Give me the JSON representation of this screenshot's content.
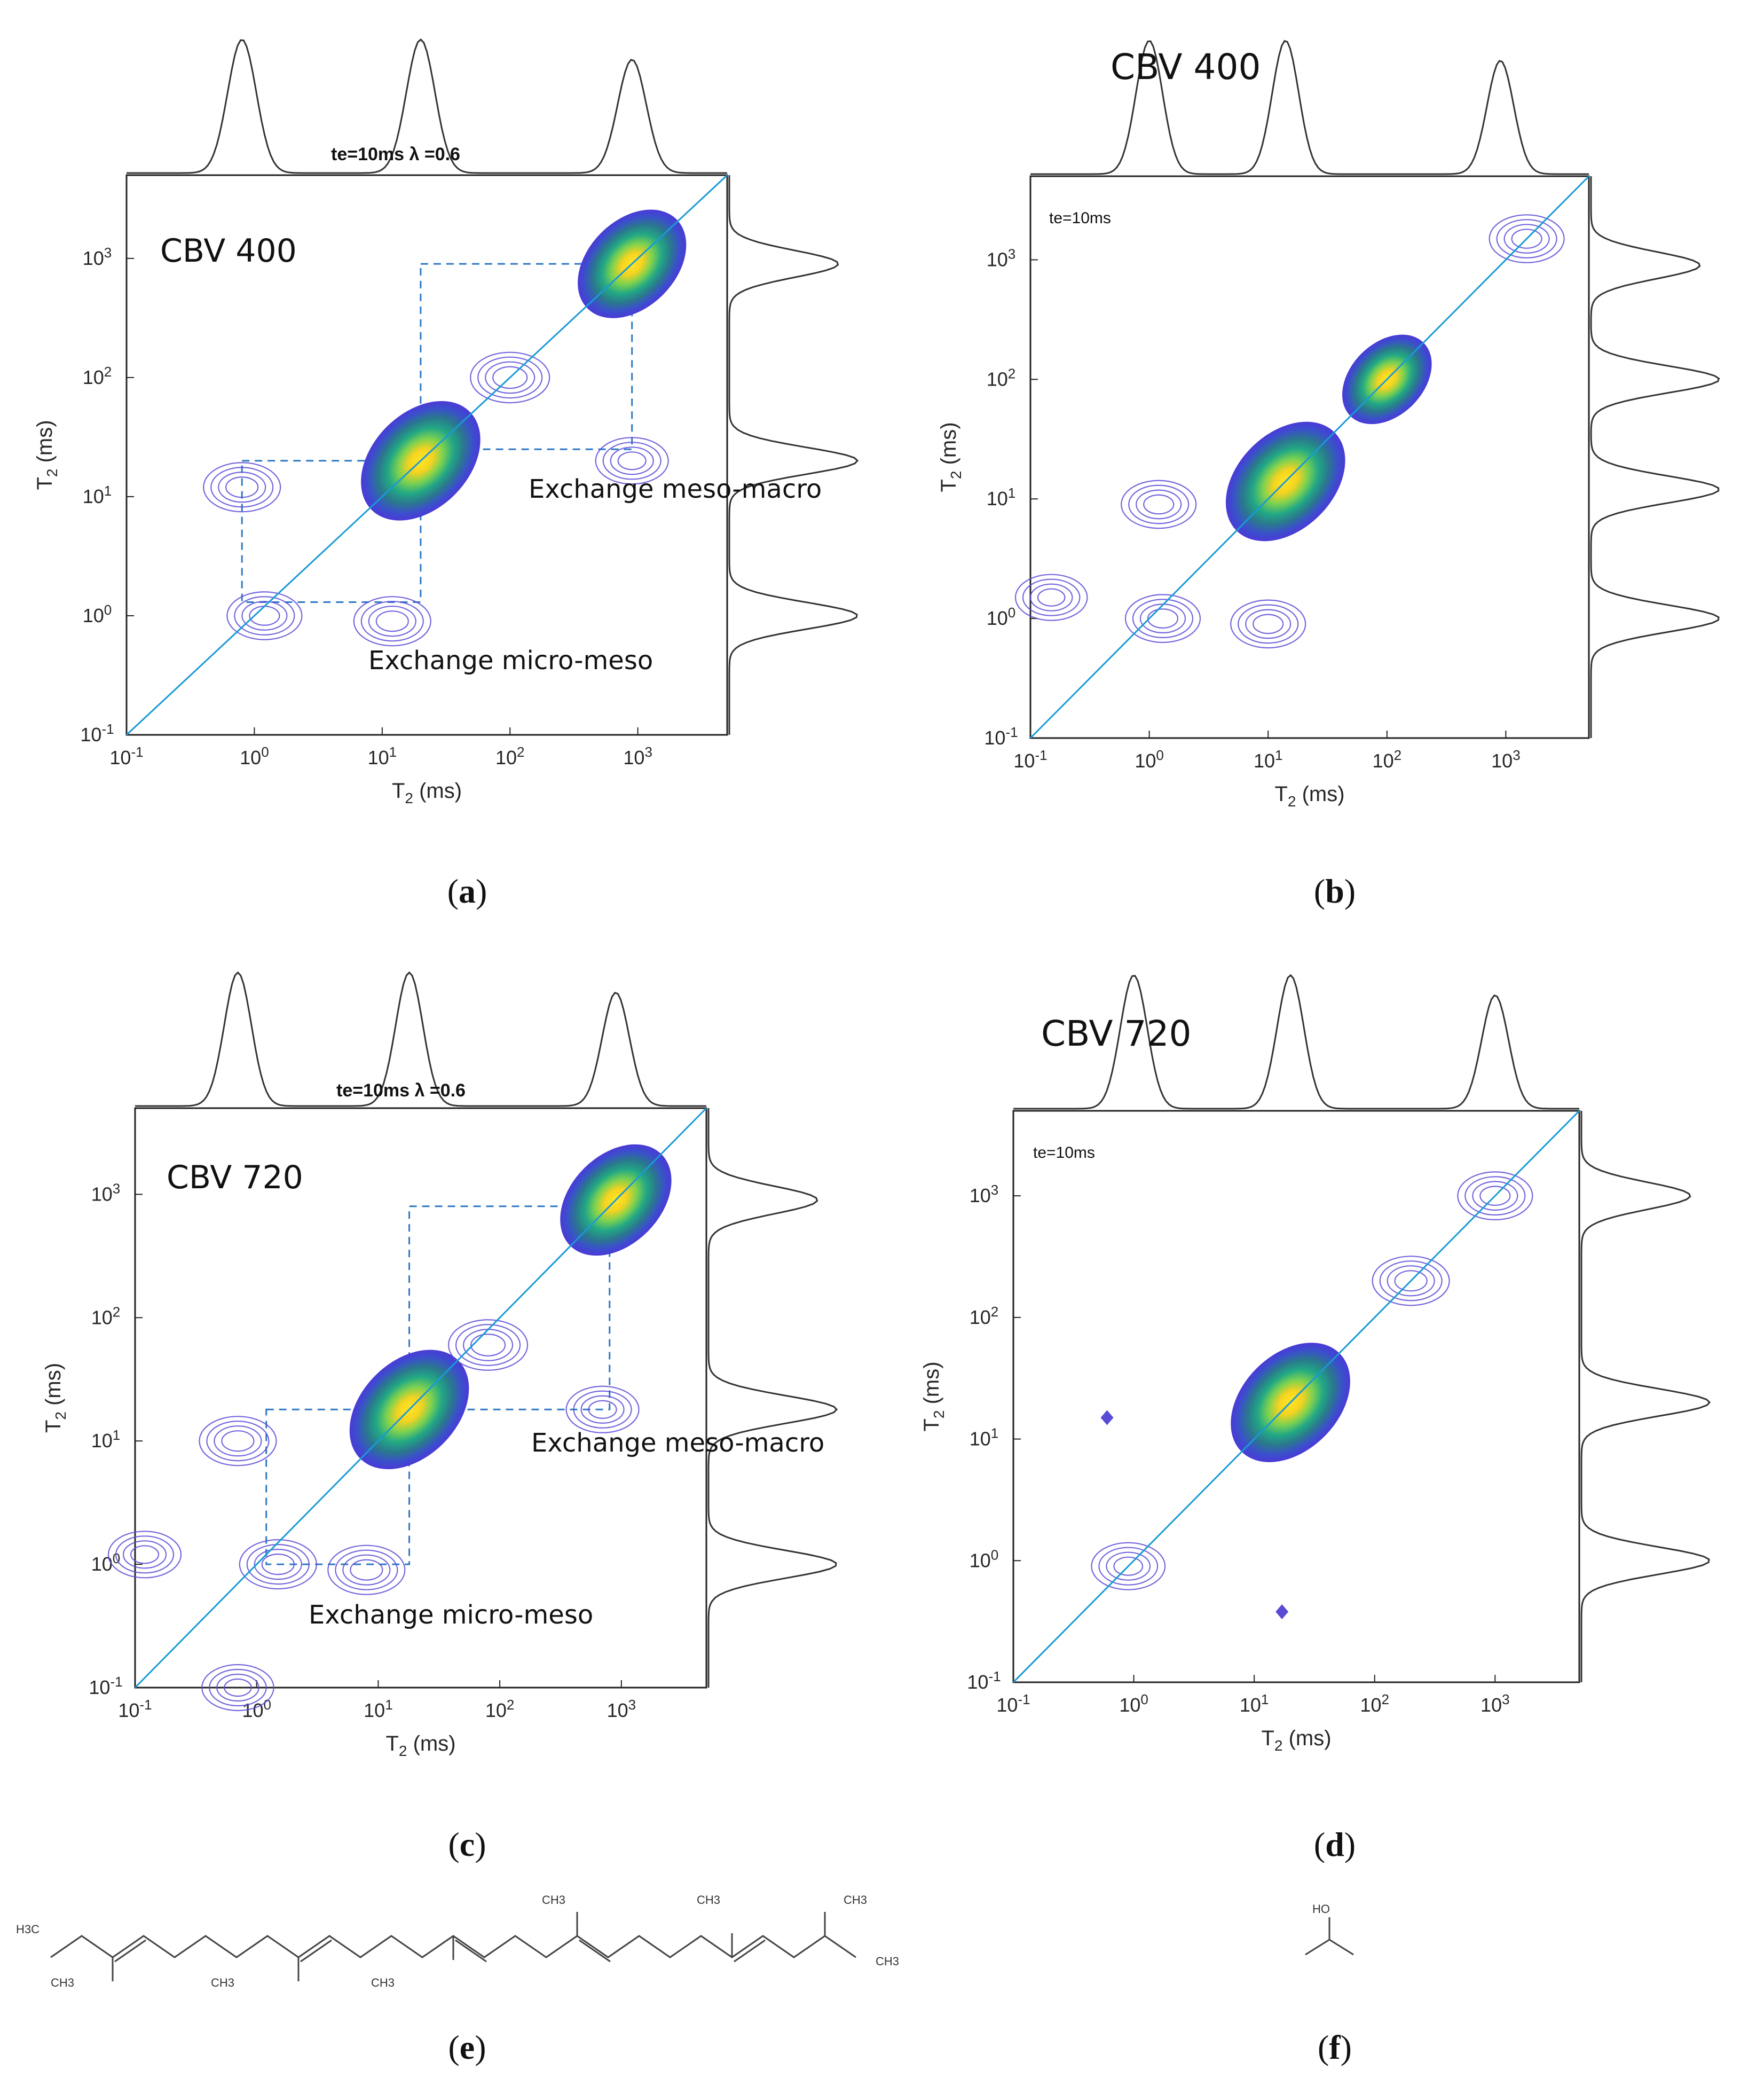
{
  "chart_data": [
    {
      "panel": "a",
      "type": "heatmap",
      "title": "te=10ms λ =0.6",
      "subtitle": "CBV 400",
      "xlabel": "T2 (ms)",
      "ylabel": "T2 (ms)",
      "xscale": "log",
      "yscale": "log",
      "xlim": [
        0.1,
        5000
      ],
      "ylim": [
        0.1,
        5000
      ],
      "xticks": [
        "10-1",
        "100",
        "101",
        "102",
        "103"
      ],
      "yticks": [
        "10-1",
        "100",
        "101",
        "102",
        "103"
      ],
      "diagonal": true,
      "annotations": [
        "Exchange meso-macro",
        "Exchange micro-meso"
      ],
      "peaks": [
        {
          "x": 20,
          "y": 20,
          "intensity": 1.0,
          "kind": "filled"
        },
        {
          "x": 900,
          "y": 900,
          "intensity": 0.8,
          "kind": "filled"
        },
        {
          "x": 100,
          "y": 100,
          "intensity": 0.25,
          "kind": "contour"
        },
        {
          "x": 0.8,
          "y": 12,
          "intensity": 0.2,
          "kind": "contour"
        },
        {
          "x": 1.2,
          "y": 1.0,
          "intensity": 0.15,
          "kind": "contour"
        },
        {
          "x": 12,
          "y": 0.9,
          "intensity": 0.2,
          "kind": "contour"
        },
        {
          "x": 900,
          "y": 20,
          "intensity": 0.1,
          "kind": "contour"
        }
      ],
      "exchange_boxes": [
        {
          "x": [
            0.8,
            20
          ],
          "y": [
            1.3,
            20
          ]
        },
        {
          "x": [
            20,
            900
          ],
          "y": [
            25,
            900
          ]
        }
      ],
      "projection_x_peaks": [
        0.8,
        20,
        900
      ],
      "projection_y_peaks": [
        1.0,
        20,
        900
      ]
    },
    {
      "panel": "b",
      "type": "heatmap",
      "title": "CBV 400",
      "subtitle": "te=10ms",
      "xlabel": "T2 (ms)",
      "ylabel": "T2 (ms)",
      "xscale": "log",
      "yscale": "log",
      "xlim": [
        0.1,
        5000
      ],
      "ylim": [
        0.1,
        5000
      ],
      "xticks": [
        "10-1",
        "100",
        "101",
        "102",
        "103"
      ],
      "yticks": [
        "10-1",
        "100",
        "101",
        "102",
        "103"
      ],
      "diagonal": true,
      "peaks": [
        {
          "x": 14,
          "y": 14,
          "intensity": 1.0,
          "kind": "filled"
        },
        {
          "x": 100,
          "y": 100,
          "intensity": 0.45,
          "kind": "filled"
        },
        {
          "x": 1500,
          "y": 1500,
          "intensity": 0.15,
          "kind": "contour"
        },
        {
          "x": 1.2,
          "y": 9,
          "intensity": 0.15,
          "kind": "contour"
        },
        {
          "x": 1.3,
          "y": 1.0,
          "intensity": 0.15,
          "kind": "contour"
        },
        {
          "x": 10,
          "y": 0.9,
          "intensity": 0.15,
          "kind": "contour"
        },
        {
          "x": 0.15,
          "y": 1.5,
          "intensity": 0.08,
          "kind": "contour"
        }
      ],
      "projection_x_peaks": [
        1.0,
        14,
        900
      ],
      "projection_y_peaks": [
        1.0,
        12,
        100,
        900
      ]
    },
    {
      "panel": "c",
      "type": "heatmap",
      "title": "te=10ms λ =0.6",
      "subtitle": "CBV 720",
      "xlabel": "T2 (ms)",
      "ylabel": "T2 (ms)",
      "xscale": "log",
      "yscale": "log",
      "xlim": [
        0.1,
        5000
      ],
      "ylim": [
        0.1,
        5000
      ],
      "xticks": [
        "10-1",
        "100",
        "101",
        "102",
        "103"
      ],
      "yticks": [
        "10-1",
        "100",
        "101",
        "102",
        "103"
      ],
      "diagonal": true,
      "annotations": [
        "Exchange meso-macro",
        "Exchange micro-meso"
      ],
      "peaks": [
        {
          "x": 18,
          "y": 18,
          "intensity": 1.0,
          "kind": "filled"
        },
        {
          "x": 900,
          "y": 900,
          "intensity": 0.85,
          "kind": "filled"
        },
        {
          "x": 80,
          "y": 60,
          "intensity": 0.25,
          "kind": "contour"
        },
        {
          "x": 0.7,
          "y": 10,
          "intensity": 0.2,
          "kind": "contour"
        },
        {
          "x": 1.5,
          "y": 1.0,
          "intensity": 0.2,
          "kind": "contour"
        },
        {
          "x": 8,
          "y": 0.9,
          "intensity": 0.2,
          "kind": "contour"
        },
        {
          "x": 700,
          "y": 18,
          "intensity": 0.1,
          "kind": "contour"
        },
        {
          "x": 0.12,
          "y": 1.2,
          "intensity": 0.1,
          "kind": "contour"
        },
        {
          "x": 0.7,
          "y": 0.1,
          "intensity": 0.08,
          "kind": "contour"
        }
      ],
      "exchange_boxes": [
        {
          "x": [
            1.2,
            18
          ],
          "y": [
            1.0,
            18
          ]
        },
        {
          "x": [
            18,
            800
          ],
          "y": [
            18,
            800
          ]
        }
      ],
      "projection_x_peaks": [
        0.7,
        18,
        900
      ],
      "projection_y_peaks": [
        1.0,
        18,
        900
      ]
    },
    {
      "panel": "d",
      "type": "heatmap",
      "title": "CBV 720",
      "subtitle": "te=10ms",
      "xlabel": "T2 (ms)",
      "ylabel": "T2 (ms)",
      "xscale": "log",
      "yscale": "log",
      "xlim": [
        0.1,
        5000
      ],
      "ylim": [
        0.1,
        5000
      ],
      "xticks": [
        "10-1",
        "100",
        "101",
        "102",
        "103"
      ],
      "yticks": [
        "10-1",
        "100",
        "101",
        "102",
        "103"
      ],
      "diagonal": true,
      "peaks": [
        {
          "x": 20,
          "y": 20,
          "intensity": 1.0,
          "kind": "filled"
        },
        {
          "x": 200,
          "y": 200,
          "intensity": 0.2,
          "kind": "contour"
        },
        {
          "x": 1000,
          "y": 1000,
          "intensity": 0.15,
          "kind": "contour"
        },
        {
          "x": 0.9,
          "y": 0.9,
          "intensity": 0.12,
          "kind": "contour"
        },
        {
          "x": 0.6,
          "y": 15,
          "intensity": 0.05,
          "kind": "point"
        },
        {
          "x": 17,
          "y": 0.38,
          "intensity": 0.05,
          "kind": "point"
        }
      ],
      "projection_x_peaks": [
        1.0,
        20,
        1000
      ],
      "projection_y_peaks": [
        1.0,
        20,
        1000
      ]
    }
  ],
  "panel_labels": {
    "a": "a",
    "b": "b",
    "c": "c",
    "d": "d",
    "e": "e",
    "f": "f"
  },
  "chemistry": {
    "squalene_labels": [
      "H3C",
      "CH3",
      "CH3",
      "CH3",
      "CH3",
      "CH3",
      "CH3",
      "CH3"
    ],
    "isopropanol_label": "HO"
  },
  "colors": {
    "diagonal": "#1a9ad6",
    "contour": "#5a4bd6",
    "box": "#2f78c4",
    "projection": "#333333"
  }
}
